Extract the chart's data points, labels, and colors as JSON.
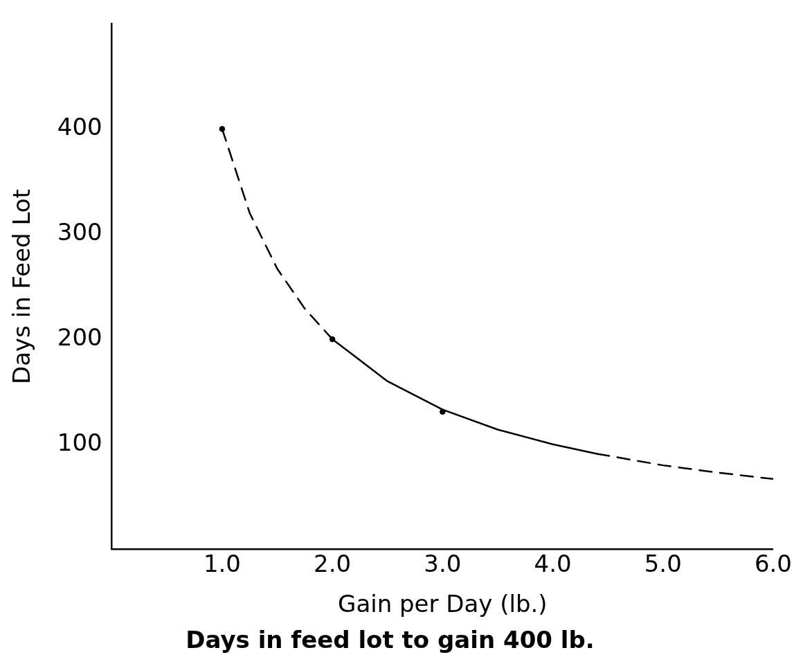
{
  "chart_data": {
    "type": "line",
    "title": "Days in feed lot to gain 400 lb.",
    "xlabel": "Gain per Day (lb.)",
    "ylabel": "Days in Feed Lot",
    "series": [
      {
        "color": "#000000",
        "line_style": "dashed",
        "x": [
          1,
          1.25,
          1.5,
          1.75,
          2
        ],
        "values": [
          400,
          320,
          267,
          229,
          200
        ]
      },
      {
        "color": "#000000",
        "line_style": "solid",
        "x": [
          2,
          2.5,
          3,
          3.5,
          4,
          4.4
        ],
        "values": [
          200,
          160,
          133,
          114,
          100,
          91
        ]
      },
      {
        "color": "#000000",
        "line_style": "dashed",
        "x": [
          4.4,
          5,
          5.5,
          6
        ],
        "values": [
          91,
          80,
          73,
          67
        ]
      },
      {
        "type": "scatter",
        "color": "#000000",
        "marker": "circle",
        "x": [
          1,
          2,
          3
        ],
        "values": [
          400,
          200,
          131
        ]
      }
    ],
    "xlim": [
      0,
      6
    ],
    "xticks": [
      {
        "value": 1,
        "label": "1.0"
      },
      {
        "value": 2,
        "label": "2.0"
      },
      {
        "value": 3,
        "label": "3.0"
      },
      {
        "value": 4,
        "label": "4.0"
      },
      {
        "value": 5,
        "label": "5.0"
      },
      {
        "value": 6,
        "label": "6.0"
      }
    ],
    "ylim": [
      0,
      500
    ],
    "yticks": [
      100,
      200,
      300,
      400
    ],
    "grid": false,
    "legend": false,
    "marker": "none"
  }
}
